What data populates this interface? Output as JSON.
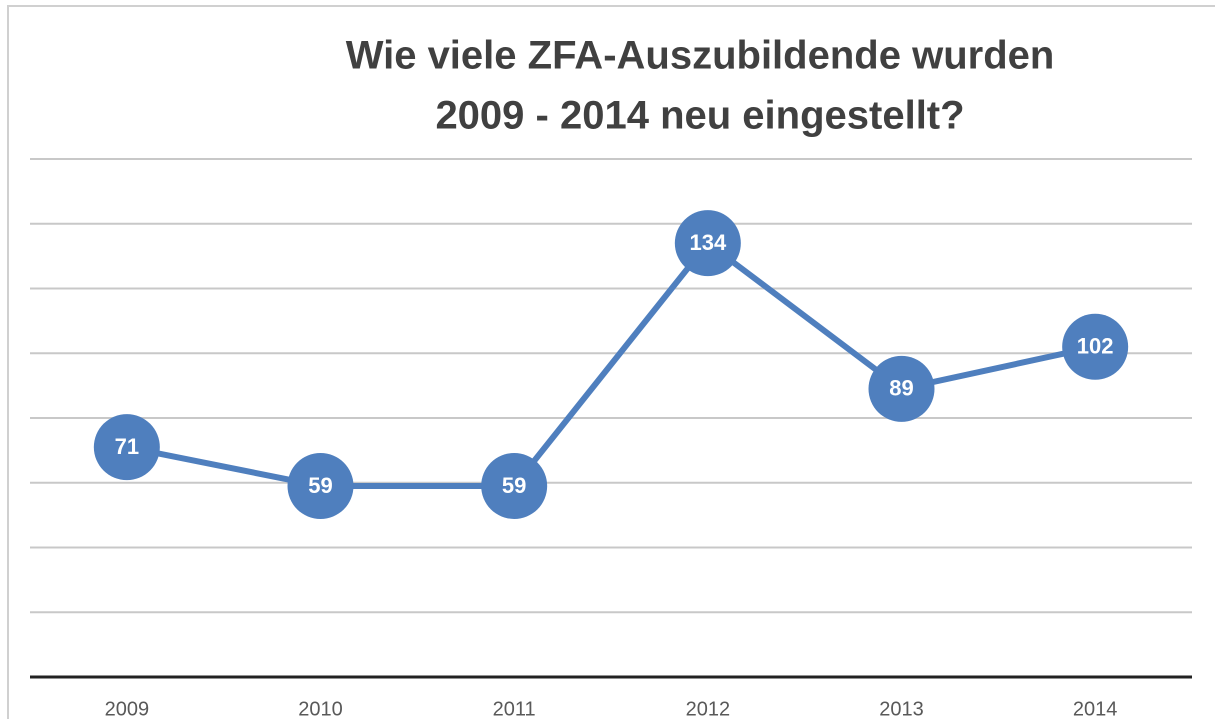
{
  "chart_data": {
    "type": "line",
    "title": [
      "Wie viele ZFA-Auszubildende wurden",
      "2009 - 2014 neu eingestellt?"
    ],
    "categories": [
      "2009",
      "2010",
      "2011",
      "2012",
      "2013",
      "2014"
    ],
    "series": [
      {
        "name": "ZFA-Auszubildende",
        "color": "#4f7fbe",
        "values": [
          71,
          59,
          59,
          134,
          89,
          102
        ]
      }
    ],
    "ylim": [
      0,
      160
    ],
    "yticks": [
      0,
      20,
      40,
      60,
      80,
      100,
      120,
      140,
      160
    ],
    "grid": true
  }
}
